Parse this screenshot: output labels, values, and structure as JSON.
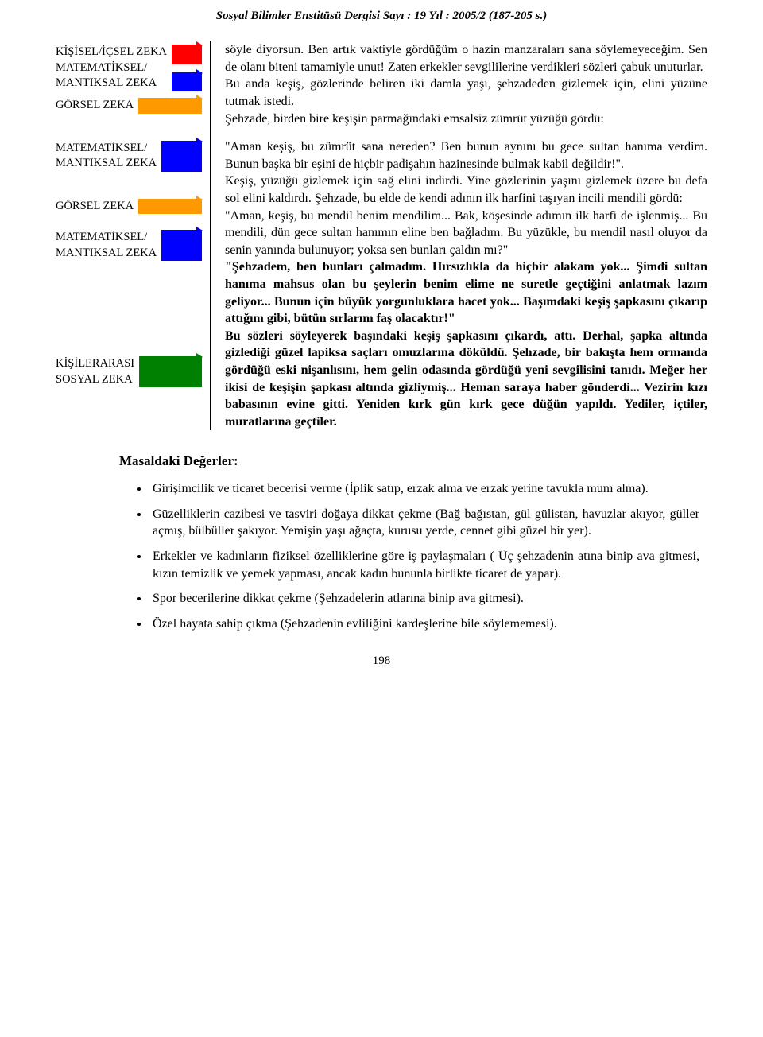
{
  "header": "Sosyal Bilimler Enstitüsü Dergisi Sayı : 19 Yıl : 2005/2 (187-205 s.)",
  "left": {
    "items": [
      {
        "lines": [
          "KİŞİSEL/İÇSEL ZEKA",
          "MATEMATİKSEL/",
          "MANTIKSAL ZEKA"
        ],
        "arrows": [
          "red",
          "blue"
        ],
        "gap": 8
      },
      {
        "lines": [
          "GÖRSEL ZEKA"
        ],
        "arrows": [
          "orange"
        ],
        "gap": 34
      },
      {
        "lines": [
          "MATEMATİKSEL/",
          "MANTIKSAL ZEKA"
        ],
        "arrows": [
          "blue"
        ],
        "gap": 34
      },
      {
        "lines": [
          "GÖRSEL ZEKA"
        ],
        "arrows": [
          "orange"
        ],
        "gap": 20
      },
      {
        "lines": [
          "MATEMATİKSEL/",
          "MANTIKSAL ZEKA"
        ],
        "arrows": [
          "blue"
        ],
        "gap": 120
      },
      {
        "lines": [
          "KİŞİLERARASI",
          "SOSYAL ZEKA"
        ],
        "arrows": [
          "green"
        ],
        "gap": 0
      }
    ]
  },
  "right": {
    "p1": "söyle diyorsun. Ben artık vaktiyle gördüğüm o hazin manzaraları sana söylemeyeceğim. Sen de olanı biteni tamamiyle unut! Zaten erkekler sevgililerine verdikleri sözleri çabuk unuturlar.",
    "p2": "Bu anda keşiş, gözlerinde beliren iki damla yaşı, şehzadeden gizlemek için, elini yüzüne tutmak istedi.",
    "p3": "Şehzade, birden bire keşişin parmağındaki emsalsiz zümrüt yüzüğü gördü:",
    "p4": "\"Aman keşiş, bu zümrüt sana nereden? Ben bunun aynını bu gece sultan hanıma verdim. Bunun başka bir eşini de hiçbir padişahın hazinesinde bulmak kabil değildir!\".",
    "p5": "Keşiş, yüzüğü gizlemek için sağ elini indirdi. Yine gözlerinin yaşını gizlemek üzere bu defa sol elini kaldırdı. Şehzade, bu elde de kendi adının ilk harfini taşıyan incili mendili gördü:",
    "p6": "\"Aman, keşiş, bu mendil benim mendilim... Bak, köşesinde adımın ilk harfi de işlenmiş... Bu mendili, dün gece sultan hanımın eline ben bağladım. Bu yüzükle, bu mendil nasıl oluyor da senin yanında bulunuyor; yoksa sen bunları çaldın mı?\"",
    "p7": "\"Şehzadem, ben bunları çalmadım. Hırsızlıkla da hiçbir alakam yok... Şimdi sultan hanıma mahsus olan bu şeylerin benim elime ne suretle geçtiğini anlatmak lazım geliyor... Bunun için büyük yorgunluklara hacet yok... Başımdaki keşiş şapkasını çıkarıp attığım gibi, bütün sırlarım faş olacaktır!\"",
    "p8": "Bu sözleri söyleyerek başındaki keşiş şapkasını çıkardı, attı. Derhal, şapka altında gizlediği güzel lapiksa saçları omuzlarına döküldü. Şehzade, bir bakışta hem ormanda gördüğü eski nişanlısını, hem gelin odasında gördüğü yeni sevgilisini tanıdı. Meğer her ikisi de keşişin şapkası altında gizliymiş... Heman saraya haber gönderdi... Vezirin kızı babasının evine gitti. Yeniden kırk gün kırk gece düğün yapıldı. Yediler, içtiler, muratlarına geçtiler."
  },
  "sectionHeading": "Masaldaki Değerler:",
  "bullets": [
    "Girişimcilik ve ticaret becerisi verme (İplik satıp, erzak alma ve erzak yerine tavukla mum alma).",
    "Güzelliklerin cazibesi ve tasviri doğaya dikkat çekme (Bağ bağıstan, gül gülistan, havuzlar akıyor, güller açmış, bülbüller şakıyor. Yemişin yaşı ağaçta, kurusu yerde, cennet gibi güzel bir yer).",
    "Erkekler ve kadınların fiziksel özelliklerine göre iş paylaşmaları ( Üç şehzadenin atına binip ava gitmesi, kızın temizlik ve yemek yapması, ancak kadın bununla birlikte  ticaret de yapar).",
    "Spor becerilerine dikkat çekme (Şehzadelerin atlarına binip ava gitmesi).",
    "Özel hayata sahip çıkma (Şehzadenin evliliğini kardeşlerine bile söylememesi)."
  ],
  "pageNumber": "198",
  "colors": {
    "red": "#ff0000",
    "blue": "#0000ff",
    "orange": "#ff9900",
    "green": "#008000",
    "text": "#000000",
    "background": "#ffffff"
  }
}
